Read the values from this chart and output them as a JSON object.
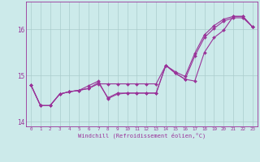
{
  "xlabel": "Windchill (Refroidissement éolien,°C)",
  "x_values": [
    0,
    1,
    2,
    3,
    4,
    5,
    6,
    7,
    8,
    9,
    10,
    11,
    12,
    13,
    14,
    15,
    16,
    17,
    18,
    19,
    20,
    21,
    22,
    23
  ],
  "line1": [
    14.8,
    14.35,
    14.35,
    14.6,
    14.65,
    14.68,
    14.72,
    14.82,
    14.82,
    14.82,
    14.82,
    14.82,
    14.82,
    14.82,
    15.22,
    15.05,
    14.92,
    14.88,
    15.5,
    15.82,
    15.98,
    16.28,
    16.28,
    16.05
  ],
  "line2": [
    14.8,
    14.35,
    14.35,
    14.6,
    14.65,
    14.68,
    14.78,
    14.88,
    14.5,
    14.6,
    14.62,
    14.62,
    14.62,
    14.62,
    15.22,
    15.08,
    14.98,
    15.48,
    15.88,
    16.08,
    16.22,
    16.28,
    16.28,
    16.05
  ],
  "line3": [
    14.8,
    14.35,
    14.35,
    14.6,
    14.65,
    14.68,
    14.72,
    14.85,
    14.52,
    14.62,
    14.62,
    14.62,
    14.62,
    14.62,
    15.22,
    15.05,
    14.92,
    15.42,
    15.82,
    16.02,
    16.18,
    16.25,
    16.25,
    16.05
  ],
  "color": "#993399",
  "bg_color": "#cceaea",
  "grid_color": "#aacccc",
  "ylim": [
    13.9,
    16.6
  ],
  "yticks": [
    14,
    15,
    16
  ],
  "xlim": [
    -0.5,
    23.5
  ],
  "marker": "D",
  "markersize": 2.0,
  "linewidth": 0.8
}
